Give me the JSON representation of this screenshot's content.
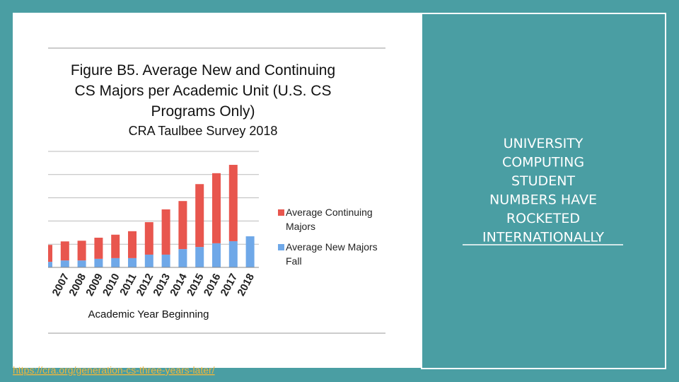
{
  "slide": {
    "heading": [
      "UNIVERSITY",
      "COMPUTING",
      "STUDENT",
      "NUMBERS HAVE",
      "ROCKETED",
      "INTERNATIONALLY"
    ],
    "link": "https://cra.org/generation-cs-three-years-later/"
  },
  "chart_data": {
    "type": "bar",
    "stacked": true,
    "title": [
      "Figure B5. Average New and Continuing",
      "CS Majors per Academic Unit (U.S. CS",
      "Programs Only)"
    ],
    "subtitle": "CRA Taulbee Survey 2018",
    "x_label": "Academic Year Beginning",
    "categories": [
      null,
      "2007",
      "2008",
      "2009",
      "2010",
      "2011",
      "2012",
      "2013",
      "2014",
      "2015",
      "2016",
      "2017",
      "2018"
    ],
    "series": [
      {
        "name": "Average New Majors Fall",
        "color": "#6fa8e8",
        "values": [
          0.24,
          0.3,
          0.3,
          0.37,
          0.4,
          0.4,
          0.55,
          0.55,
          0.79,
          0.88,
          1.04,
          1.13,
          1.34
        ]
      },
      {
        "name": "Average Continuing Majors",
        "color": "#e8564e",
        "values": [
          0.73,
          0.82,
          0.85,
          0.91,
          1.01,
          1.16,
          1.4,
          1.95,
          2.07,
          2.71,
          3.02,
          3.29,
          null
        ]
      }
    ],
    "ylim": [
      0,
      5
    ],
    "grid": true
  }
}
